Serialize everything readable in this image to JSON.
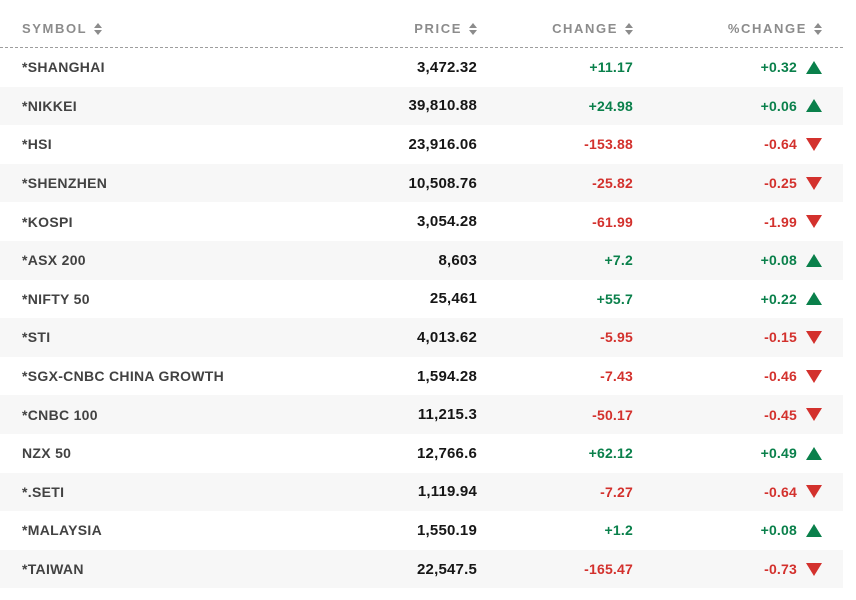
{
  "colors": {
    "positive": "#0a804b",
    "negative": "#d3312d",
    "header_text": "#8c8c8c",
    "symbol_text": "#424242",
    "price_text": "#161616",
    "row_alt_background": "#f7f7f7"
  },
  "table": {
    "columns": [
      {
        "key": "symbol",
        "label": "SYMBOL",
        "sortable": true,
        "align": "left"
      },
      {
        "key": "price",
        "label": "PRICE",
        "sortable": true,
        "align": "right"
      },
      {
        "key": "change",
        "label": "CHANGE",
        "sortable": true,
        "align": "right"
      },
      {
        "key": "pct-change",
        "label": "%CHANGE",
        "sortable": true,
        "align": "right"
      }
    ],
    "rows": [
      {
        "symbol": "*SHANGHAI",
        "price": "3,472.32",
        "change": "+11.17",
        "pct_change": "+0.32",
        "direction": "up"
      },
      {
        "symbol": "*NIKKEI",
        "price": "39,810.88",
        "change": "+24.98",
        "pct_change": "+0.06",
        "direction": "up"
      },
      {
        "symbol": "*HSI",
        "price": "23,916.06",
        "change": "-153.88",
        "pct_change": "-0.64",
        "direction": "down"
      },
      {
        "symbol": "*SHENZHEN",
        "price": "10,508.76",
        "change": "-25.82",
        "pct_change": "-0.25",
        "direction": "down"
      },
      {
        "symbol": "*KOSPI",
        "price": "3,054.28",
        "change": "-61.99",
        "pct_change": "-1.99",
        "direction": "down"
      },
      {
        "symbol": "*ASX 200",
        "price": "8,603",
        "change": "+7.2",
        "pct_change": "+0.08",
        "direction": "up"
      },
      {
        "symbol": "*NIFTY 50",
        "price": "25,461",
        "change": "+55.7",
        "pct_change": "+0.22",
        "direction": "up"
      },
      {
        "symbol": "*STI",
        "price": "4,013.62",
        "change": "-5.95",
        "pct_change": "-0.15",
        "direction": "down"
      },
      {
        "symbol": "*SGX-CNBC CHINA GROWTH",
        "price": "1,594.28",
        "change": "-7.43",
        "pct_change": "-0.46",
        "direction": "down"
      },
      {
        "symbol": "*CNBC 100",
        "price": "11,215.3",
        "change": "-50.17",
        "pct_change": "-0.45",
        "direction": "down"
      },
      {
        "symbol": "NZX 50",
        "price": "12,766.6",
        "change": "+62.12",
        "pct_change": "+0.49",
        "direction": "up"
      },
      {
        "symbol": "*.SETI",
        "price": "1,119.94",
        "change": "-7.27",
        "pct_change": "-0.64",
        "direction": "down"
      },
      {
        "symbol": "*MALAYSIA",
        "price": "1,550.19",
        "change": "+1.2",
        "pct_change": "+0.08",
        "direction": "up"
      },
      {
        "symbol": "*TAIWAN",
        "price": "22,547.5",
        "change": "-165.47",
        "pct_change": "-0.73",
        "direction": "down"
      }
    ]
  }
}
